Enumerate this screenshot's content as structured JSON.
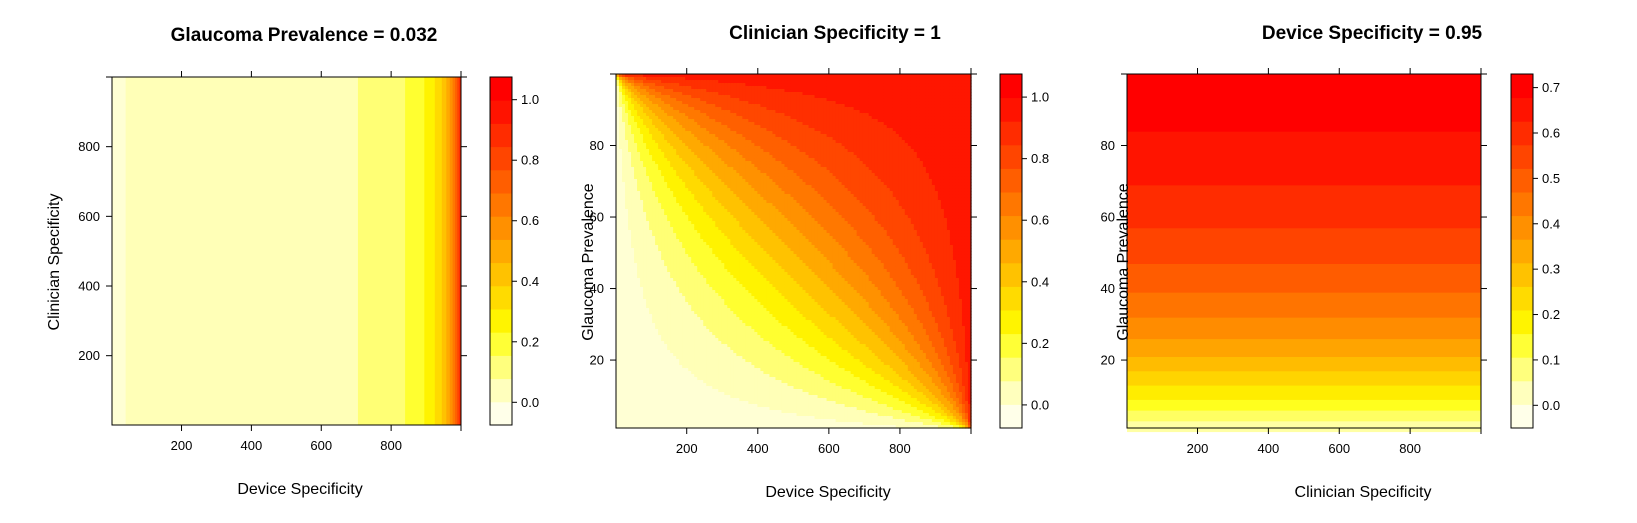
{
  "chart_data": [
    {
      "type": "heatmap",
      "title": "Glaucoma Prevalence =  0.032",
      "xlabel": "Device Specificity",
      "ylabel": "Clinician Specificity",
      "xlim": [
        1,
        1000
      ],
      "ylim": [
        1,
        1000
      ],
      "xticks": [
        200,
        400,
        600,
        800
      ],
      "yticks": [
        200,
        400,
        600,
        800
      ],
      "colorkey": {
        "ticks": [
          "0.0",
          "0.2",
          "0.4",
          "0.6",
          "0.8",
          "1.0"
        ],
        "range": [
          -0.075,
          1.075
        ]
      },
      "fill_direction": "x",
      "bands": [
        {
          "x_from": 1,
          "x_to": 40,
          "level": 0.0
        },
        {
          "x_from": 40,
          "x_to": 705,
          "level": 0.05
        },
        {
          "x_from": 705,
          "x_to": 840,
          "level": 0.125
        },
        {
          "x_from": 840,
          "x_to": 895,
          "level": 0.2
        },
        {
          "x_from": 895,
          "x_to": 925,
          "level": 0.275
        },
        {
          "x_from": 925,
          "x_to": 945,
          "level": 0.35
        },
        {
          "x_from": 945,
          "x_to": 958,
          "level": 0.425
        },
        {
          "x_from": 958,
          "x_to": 968,
          "level": 0.5
        },
        {
          "x_from": 968,
          "x_to": 976,
          "level": 0.575
        },
        {
          "x_from": 976,
          "x_to": 983,
          "level": 0.65
        },
        {
          "x_from": 983,
          "x_to": 989,
          "level": 0.725
        },
        {
          "x_from": 989,
          "x_to": 994,
          "level": 0.8
        },
        {
          "x_from": 994,
          "x_to": 998,
          "level": 0.875
        },
        {
          "x_from": 998,
          "x_to": 1000,
          "level": 0.95
        }
      ]
    },
    {
      "type": "heatmap",
      "title": "Clinician Specificity =  1",
      "xlabel": "Device Specificity",
      "ylabel": "Glaucoma Prevalence",
      "xlim": [
        1,
        1000
      ],
      "ylim": [
        1,
        100
      ],
      "xticks": [
        200,
        400,
        600,
        800
      ],
      "yticks": [
        20,
        40,
        60,
        80
      ],
      "colorkey": {
        "ticks": [
          "0.0",
          "0.2",
          "0.4",
          "0.6",
          "0.8",
          "1.0"
        ],
        "range": [
          -0.075,
          1.075
        ]
      },
      "fill_direction": "function",
      "surface": "p*s/(p*s+(1-p)*(1-s))",
      "levels": [
        0.0,
        0.05,
        0.125,
        0.2,
        0.275,
        0.35,
        0.425,
        0.5,
        0.575,
        0.65,
        0.725,
        0.8,
        0.875,
        0.95,
        1.0
      ]
    },
    {
      "type": "heatmap",
      "title": "Device Specificity =  0.95",
      "xlabel": "Clinician Specificity",
      "ylabel": "Glaucoma Prevalence",
      "xlim": [
        1,
        1000
      ],
      "ylim": [
        1,
        100
      ],
      "xticks": [
        200,
        400,
        600,
        800
      ],
      "yticks": [
        20,
        40,
        60,
        80
      ],
      "colorkey": {
        "ticks": [
          "0.0",
          "0.1",
          "0.2",
          "0.3",
          "0.4",
          "0.5",
          "0.6",
          "0.7"
        ],
        "range": [
          -0.05,
          0.73
        ]
      },
      "fill_direction": "y",
      "bands": [
        {
          "y_from": 0,
          "y_to": 3,
          "level": 0.05
        },
        {
          "y_from": 3,
          "y_to": 6,
          "level": 0.1
        },
        {
          "y_from": 6,
          "y_to": 9,
          "level": 0.15
        },
        {
          "y_from": 9,
          "y_to": 13,
          "level": 0.2
        },
        {
          "y_from": 13,
          "y_to": 17,
          "level": 0.25
        },
        {
          "y_from": 17,
          "y_to": 21,
          "level": 0.3
        },
        {
          "y_from": 21,
          "y_to": 26,
          "level": 0.35
        },
        {
          "y_from": 26,
          "y_to": 32,
          "level": 0.4
        },
        {
          "y_from": 32,
          "y_to": 39,
          "level": 0.45
        },
        {
          "y_from": 39,
          "y_to": 47,
          "level": 0.5
        },
        {
          "y_from": 47,
          "y_to": 57,
          "level": 0.55
        },
        {
          "y_from": 57,
          "y_to": 69,
          "level": 0.6
        },
        {
          "y_from": 69,
          "y_to": 84,
          "level": 0.65
        },
        {
          "y_from": 84,
          "y_to": 100,
          "level": 0.7
        }
      ]
    }
  ]
}
